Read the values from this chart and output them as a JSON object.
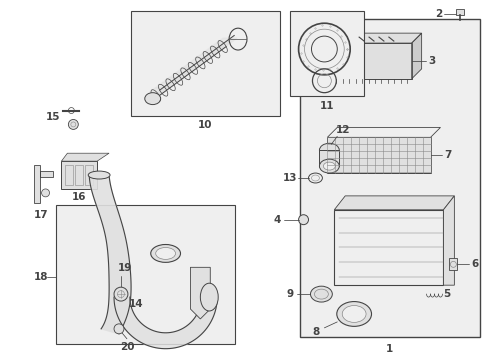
{
  "bg_color": "#ffffff",
  "line_color": "#444444",
  "medium_gray": "#888888",
  "fill_gray": "#e0e0e0",
  "fill_light": "#efefef",
  "fill_box": "#e8e8e8"
}
